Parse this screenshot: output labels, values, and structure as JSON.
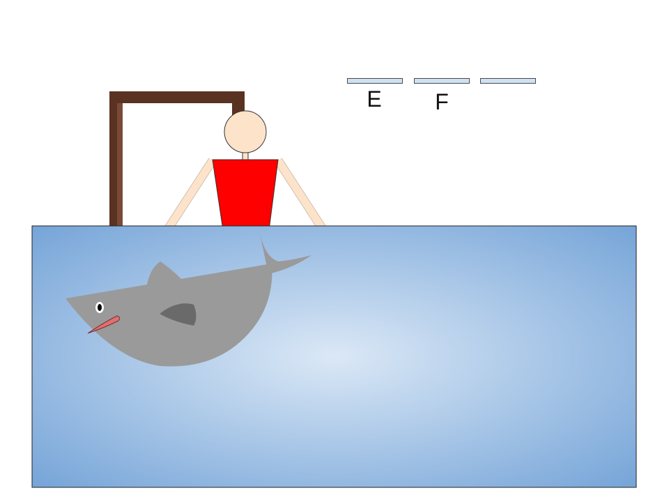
{
  "game": {
    "word_slots": [
      {
        "letter": "E"
      },
      {
        "letter": "F"
      },
      {
        "letter": ""
      }
    ]
  },
  "colors": {
    "gallows": "#5a3222",
    "gallows_light": "#7a4a38",
    "skin": "#fde3c9",
    "shirt": "#ff0000",
    "water_center": "#dbe8f6",
    "water_edge": "#6fa0d6",
    "shark": "#9a9a9a",
    "shark_fin": "#6a6a6a",
    "shark_mouth": "#e07070",
    "slot_fill": "#cfe2f3"
  }
}
